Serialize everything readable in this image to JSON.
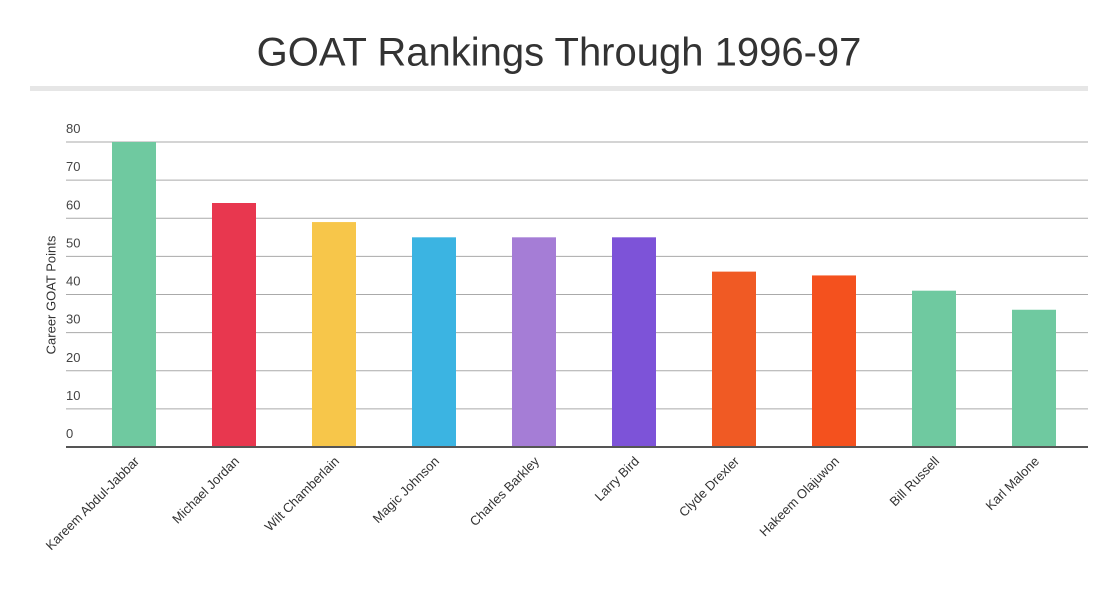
{
  "chart_data": {
    "type": "bar",
    "title": "GOAT Rankings Through 1996-97",
    "y_label": "Career GOAT Points",
    "categories": [
      "Kareem Abdul-Jabbar",
      "Michael Jordan",
      "Wilt Chamberlain",
      "Magic Johnson",
      "Charles Barkley",
      "Larry Bird",
      "Clyde Drexler",
      "Hakeem Olajuwon",
      "Bill Russell",
      "Karl Malone"
    ],
    "values": [
      80,
      64,
      59,
      55,
      55,
      55,
      46,
      45,
      41,
      36
    ],
    "colors": [
      "#6fc9a0",
      "#e8374f",
      "#f7c64a",
      "#3bb4e2",
      "#a57dd6",
      "#7d53d8",
      "#f05a24",
      "#f4511e",
      "#6fc9a0",
      "#6fc9a0"
    ],
    "ylim": [
      0,
      80
    ],
    "yticks": [
      0,
      10,
      20,
      30,
      40,
      50,
      60,
      70,
      80
    ],
    "grid": true
  }
}
